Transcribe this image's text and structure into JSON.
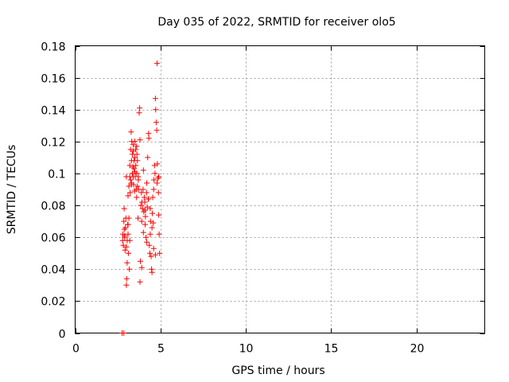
{
  "chart_data": {
    "type": "scatter",
    "title": "Day 035 of 2022, SRMTID for receiver olo5",
    "xlabel": "GPS time / hours",
    "ylabel": "SRMTID / TECUs",
    "xlim": [
      0,
      24
    ],
    "ylim": [
      0,
      0.18
    ],
    "xticks": [
      0,
      5,
      10,
      15,
      20
    ],
    "xtick_labels": [
      "0",
      "5",
      "10",
      "15",
      "20"
    ],
    "yticks": [
      0,
      0.02,
      0.04,
      0.06,
      0.08,
      0.1,
      0.12,
      0.14,
      0.16,
      0.18
    ],
    "ytick_labels": [
      "0",
      "0.02",
      "0.04",
      "0.06",
      "0.08",
      "0.1",
      "0.12",
      "0.14",
      "0.16",
      "0.18"
    ],
    "grid": true,
    "legend": "none",
    "marker": "+",
    "color": "#ff0000",
    "x": [
      2.75,
      2.78,
      2.8,
      2.82,
      2.85,
      2.87,
      2.88,
      2.9,
      2.92,
      2.95,
      2.97,
      3.0,
      3.0,
      3.02,
      3.05,
      3.05,
      3.08,
      3.1,
      3.1,
      3.12,
      3.15,
      3.15,
      3.18,
      3.2,
      3.2,
      3.22,
      3.25,
      3.25,
      3.28,
      3.3,
      3.3,
      3.32,
      3.35,
      3.35,
      3.38,
      3.4,
      3.4,
      3.42,
      3.45,
      3.45,
      3.48,
      3.5,
      3.5,
      3.52,
      3.55,
      3.55,
      3.58,
      3.6,
      3.6,
      3.62,
      3.65,
      3.65,
      3.68,
      3.7,
      3.72,
      3.75,
      3.78,
      3.8,
      3.82,
      3.85,
      3.88,
      3.9,
      3.92,
      3.95,
      3.98,
      4.0,
      4.02,
      4.05,
      4.08,
      4.1,
      4.12,
      4.15,
      4.18,
      4.2,
      4.22,
      4.25,
      4.28,
      4.3,
      4.32,
      4.35,
      4.38,
      4.4,
      4.42,
      4.45,
      4.48,
      4.5,
      4.52,
      4.55,
      4.58,
      4.6,
      4.62,
      4.65,
      4.68,
      4.7,
      4.72,
      4.75,
      4.78,
      4.8,
      4.82,
      4.85,
      4.88,
      4.9,
      4.92,
      4.95,
      2.85,
      2.9,
      3.0,
      3.1,
      3.2,
      3.3,
      3.4,
      3.5,
      3.6,
      3.7,
      3.8,
      3.9,
      4.0,
      4.1,
      4.2,
      4.3,
      4.4,
      4.5,
      4.6,
      4.7,
      4.8,
      4.9
    ],
    "y": [
      0.0,
      0.058,
      0.062,
      0.055,
      0.07,
      0.078,
      0.065,
      0.06,
      0.052,
      0.066,
      0.072,
      0.03,
      0.098,
      0.034,
      0.058,
      0.044,
      0.068,
      0.062,
      0.086,
      0.05,
      0.072,
      0.092,
      0.04,
      0.098,
      0.105,
      0.088,
      0.096,
      0.115,
      0.126,
      0.094,
      0.108,
      0.12,
      0.112,
      0.1,
      0.104,
      0.098,
      0.118,
      0.093,
      0.103,
      0.108,
      0.089,
      0.11,
      0.12,
      0.098,
      0.105,
      0.115,
      0.09,
      0.1,
      0.085,
      0.112,
      0.108,
      0.092,
      0.072,
      0.098,
      0.09,
      0.138,
      0.141,
      0.032,
      0.045,
      0.08,
      0.088,
      0.07,
      0.082,
      0.078,
      0.09,
      0.102,
      0.076,
      0.085,
      0.082,
      0.068,
      0.073,
      0.06,
      0.088,
      0.094,
      0.079,
      0.11,
      0.084,
      0.125,
      0.122,
      0.055,
      0.05,
      0.062,
      0.07,
      0.048,
      0.04,
      0.038,
      0.075,
      0.085,
      0.069,
      0.09,
      0.096,
      0.105,
      0.1,
      0.147,
      0.14,
      0.132,
      0.127,
      0.169,
      0.106,
      0.097,
      0.088,
      0.074,
      0.062,
      0.05,
      0.0,
      0.061,
      0.054,
      0.068,
      0.058,
      0.093,
      0.114,
      0.101,
      0.117,
      0.096,
      0.121,
      0.041,
      0.063,
      0.077,
      0.057,
      0.084,
      0.078,
      0.066,
      0.053,
      0.049,
      0.094,
      0.098
    ]
  }
}
